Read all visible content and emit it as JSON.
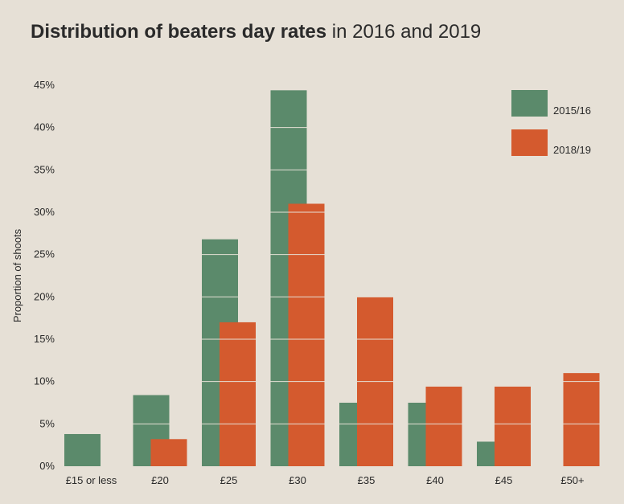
{
  "chart_data": {
    "type": "bar",
    "title_bold": "Distribution of beaters day rates",
    "title_rest": " in 2016 and 2019",
    "xlabel": "",
    "ylabel": "Proportion of shoots",
    "categories": [
      "£15 or less",
      "£20",
      "£25",
      "£30",
      "£35",
      "£40",
      "£45",
      "£50+"
    ],
    "series": [
      {
        "name": "2015/16",
        "color": "#5b8a6b",
        "values": [
          3.8,
          8.4,
          26.8,
          44.4,
          7.5,
          7.5,
          2.9,
          0
        ]
      },
      {
        "name": "2018/19",
        "color": "#d45a2e",
        "values": [
          0,
          3.2,
          17.0,
          31.0,
          20.0,
          9.4,
          9.4,
          11.0
        ]
      }
    ],
    "ylim": [
      0,
      45
    ],
    "yticks": [
      0,
      5,
      10,
      15,
      20,
      25,
      30,
      35,
      40,
      45
    ],
    "ytick_labels": [
      "0%",
      "5%",
      "10%",
      "15%",
      "20%",
      "25%",
      "30%",
      "35%",
      "40%",
      "45%"
    ],
    "gridlines_over_bars": true,
    "legend_position": "top-right"
  }
}
